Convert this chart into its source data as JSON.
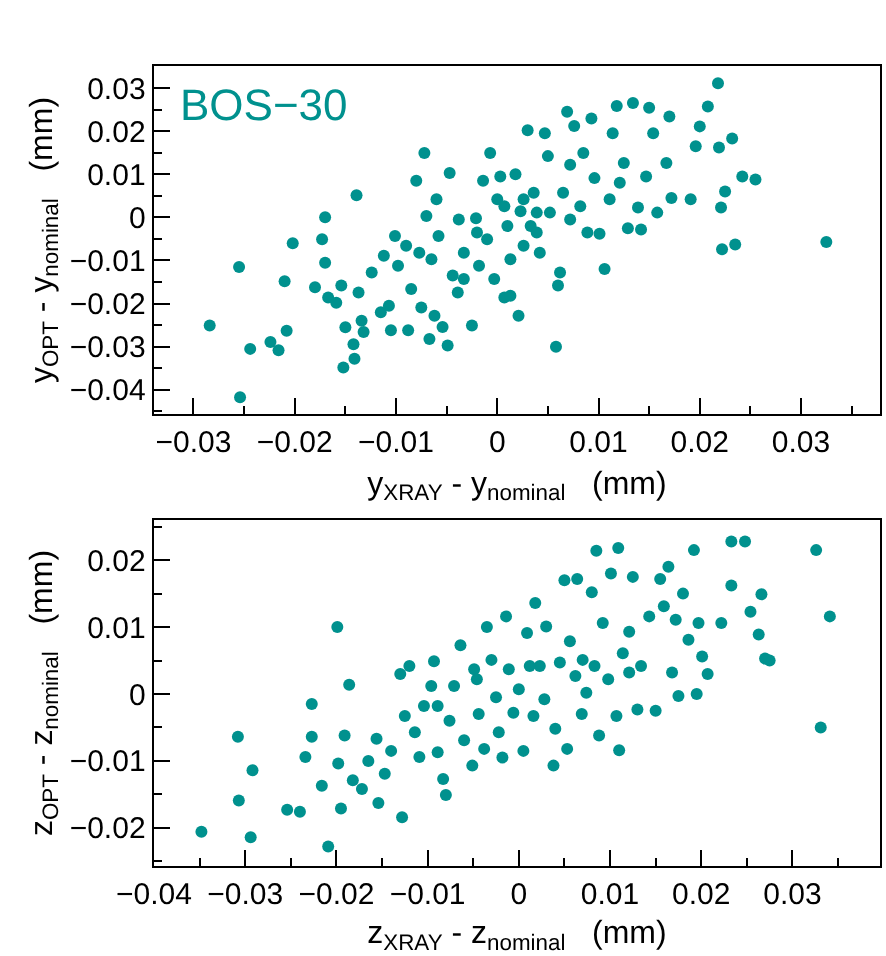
{
  "chart_data": [
    {
      "type": "scatter",
      "xlabel": "y$_{XRAY}$ - y$_{nominal}$   (mm)",
      "ylabel": "y$_{OPT}$ - y$_{nominal}$   (mm)",
      "annotations": [
        "BOS−30"
      ],
      "marker": "circle",
      "xlim": [
        -0.0339,
        0.0378
      ],
      "ylim": [
        -0.0456,
        0.0351
      ],
      "xticks": [
        -0.03,
        -0.02,
        -0.01,
        0,
        0.01,
        0.02,
        0.03
      ],
      "yticks": [
        -0.04,
        -0.03,
        -0.02,
        -0.01,
        0,
        0.01,
        0.02,
        0.03
      ],
      "series": [
        {
          "color": "#00918e",
          "x": [
            -0.0284,
            -0.0255,
            -0.0254,
            -0.0244,
            -0.0224,
            -0.0216,
            -0.0208,
            -0.021,
            -0.0202,
            -0.018,
            -0.0173,
            -0.017,
            -0.017,
            -0.0167,
            -0.0159,
            -0.0154,
            -0.0152,
            -0.015,
            -0.0142,
            -0.0141,
            -0.0139,
            -0.0137,
            -0.0134,
            -0.0132,
            -0.0124,
            -0.0115,
            -0.0112,
            -0.0107,
            -0.0105,
            -0.0101,
            -0.0098,
            -0.009,
            -0.0088,
            -0.0085,
            -0.008,
            -0.0077,
            -0.0075,
            -0.0072,
            -0.007,
            -0.0067,
            -0.0062,
            -0.006,
            -0.0058,
            -0.0054,
            -0.0049,
            -0.0047,
            -0.0044,
            -0.0039,
            -0.0038,
            -0.0033,
            -0.0025,
            -0.0021,
            -0.0018,
            -0.0014,
            -0.001,
            -0.0007,
            -0.0003,
            0.0,
            0.0003,
            0.0007,
            0.001,
            0.0013,
            0.0018,
            0.0021,
            0.0023,
            0.0026,
            0.003,
            0.0033,
            0.0036,
            0.0039,
            0.0042,
            0.0047,
            0.005,
            0.0052,
            0.0058,
            0.006,
            0.0062,
            0.0065,
            0.0069,
            0.0072,
            0.0076,
            0.0082,
            0.0085,
            0.0089,
            0.0093,
            0.0096,
            0.0101,
            0.0106,
            0.0111,
            0.0114,
            0.0118,
            0.0121,
            0.0125,
            0.0129,
            0.0134,
            0.0139,
            0.0142,
            0.0147,
            0.015,
            0.0154,
            0.0158,
            0.0167,
            0.017,
            0.0172,
            0.0191,
            0.0196,
            0.02,
            0.0208,
            0.0218,
            0.0219,
            0.0221,
            0.0222,
            0.0225,
            0.0232,
            0.0235,
            0.0242,
            0.0255,
            0.0325,
            0.0007,
            0.0026,
            0.0039,
            -0.0033,
            -0.0065,
            -0.002,
            0.0072,
            0.0013
          ],
          "values": [
            -0.0251,
            -0.0115,
            -0.0417,
            -0.0305,
            -0.0289,
            -0.0308,
            -0.0263,
            -0.0148,
            -0.006,
            -0.0162,
            -0.0051,
            0.0,
            -0.0105,
            -0.0186,
            -0.0198,
            -0.0158,
            -0.0348,
            -0.0255,
            -0.0294,
            -0.0328,
            0.0051,
            -0.0174,
            -0.024,
            -0.0266,
            -0.0128,
            -0.022,
            -0.0089,
            -0.0205,
            -0.0262,
            -0.0043,
            -0.0112,
            -0.0066,
            -0.0262,
            -0.0166,
            0.0085,
            -0.0082,
            -0.0209,
            0.0149,
            0.0003,
            -0.0282,
            -0.0228,
            0.0042,
            -0.0043,
            -0.0254,
            -0.0297,
            0.0103,
            -0.0135,
            -0.0174,
            -0.0005,
            -0.0082,
            -0.0251,
            -0.0002,
            -0.0112,
            0.0085,
            -0.0051,
            0.0149,
            -0.0143,
            0.0042,
            0.0095,
            -0.0186,
            -0.002,
            -0.0097,
            0.01,
            -0.0228,
            0.0014,
            -0.0066,
            0.0202,
            -0.002,
            0.0057,
            -0.0035,
            -0.0082,
            0.0195,
            0.0142,
            0.0011,
            -0.03,
            -0.0158,
            -0.0128,
            0.0057,
            0.0245,
            0.0122,
            0.0212,
            0.0026,
            0.0149,
            -0.0035,
            0.0229,
            0.0091,
            -0.0038,
            -0.012,
            0.0042,
            0.0195,
            0.0258,
            0.008,
            0.0126,
            -0.0025,
            0.0265,
            0.0023,
            -0.0028,
            0.0095,
            0.0254,
            0.0195,
            0.0011,
            0.0126,
            0.0234,
            0.0045,
            0.0042,
            0.0165,
            0.0211,
            0.0257,
            0.0311,
            0.0162,
            0.0023,
            -0.0074,
            0.006,
            0.0183,
            -0.0063,
            0.0095,
            0.0088,
            -0.0057,
            0.0026,
            0.0042,
            0.0011,
            -0.0143,
            -0.0097,
            -0.0035,
            -0.0005,
            -0.0182
          ]
        }
      ]
    },
    {
      "type": "scatter",
      "xlabel": "z$_{XRAY}$ - z$_{nominal}$   (mm)",
      "ylabel": "z$_{OPT}$ - z$_{nominal}$   (mm)",
      "marker": "circle",
      "xlim": [
        -0.04,
        0.0396
      ],
      "ylim": [
        -0.0257,
        0.026
      ],
      "xticks": [
        -0.04,
        -0.03,
        -0.02,
        -0.01,
        0,
        0.01,
        0.02,
        0.03
      ],
      "yticks": [
        -0.02,
        -0.01,
        0,
        0.01,
        0.02
      ],
      "series": [
        {
          "color": "#00918e",
          "x": [
            -0.0348,
            -0.0308,
            -0.0307,
            -0.0294,
            -0.0292,
            -0.0254,
            -0.024,
            -0.0234,
            -0.0227,
            -0.0227,
            -0.0216,
            -0.0209,
            -0.0199,
            -0.0198,
            -0.0195,
            -0.0191,
            -0.0186,
            -0.0182,
            -0.0172,
            -0.0165,
            -0.0154,
            -0.0156,
            -0.0147,
            -0.014,
            -0.013,
            -0.0128,
            -0.0125,
            -0.012,
            -0.0114,
            -0.0109,
            -0.0104,
            -0.0096,
            -0.0093,
            -0.0089,
            -0.0083,
            -0.008,
            -0.0076,
            -0.0071,
            -0.0064,
            -0.006,
            -0.0051,
            -0.0049,
            -0.0044,
            -0.0038,
            -0.0035,
            -0.003,
            -0.0025,
            -0.0022,
            -0.0018,
            -0.0014,
            -0.0011,
            -0.0006,
            0.0,
            0.0005,
            0.0009,
            0.0016,
            0.0018,
            0.0023,
            0.0028,
            0.003,
            0.0038,
            0.004,
            0.0045,
            0.005,
            0.0053,
            0.0056,
            0.0062,
            0.0064,
            0.0069,
            0.0074,
            0.008,
            0.0083,
            0.0085,
            0.0088,
            0.0092,
            0.0098,
            0.0101,
            0.0107,
            0.0109,
            0.011,
            0.0114,
            0.0121,
            0.0125,
            0.013,
            0.0134,
            0.0143,
            0.015,
            0.0155,
            0.0159,
            0.0164,
            0.0168,
            0.0172,
            0.0175,
            0.018,
            0.0186,
            0.0192,
            0.0195,
            0.0197,
            0.0201,
            0.0207,
            0.0222,
            0.0233,
            0.0233,
            0.0248,
            0.0254,
            0.0263,
            0.0266,
            0.027,
            0.0275,
            0.0326,
            0.0331,
            0.0341,
            0.0012,
            -0.0046,
            0.007,
            0.0121,
            -0.0089
          ],
          "values": [
            -0.0206,
            -0.0064,
            -0.0159,
            -0.0214,
            -0.0114,
            -0.0173,
            -0.0176,
            -0.0094,
            -0.0015,
            -0.0064,
            -0.0137,
            -0.0228,
            0.01,
            -0.0104,
            -0.0171,
            -0.0062,
            0.0014,
            -0.0129,
            -0.0142,
            -0.01,
            -0.0163,
            -0.0067,
            -0.0119,
            -0.0085,
            0.003,
            -0.0184,
            -0.0033,
            0.0042,
            -0.0057,
            -0.0094,
            -0.0018,
            0.0012,
            0.0049,
            -0.0087,
            -0.0127,
            -0.0151,
            -0.004,
            0.0012,
            0.0073,
            -0.0069,
            -0.0107,
            0.0037,
            -0.003,
            -0.0082,
            0.01,
            0.0051,
            -0.0005,
            -0.0057,
            -0.0095,
            0.0116,
            0.0037,
            -0.0028,
            0.0007,
            -0.0085,
            0.0091,
            -0.0033,
            0.0136,
            0.0042,
            -0.0008,
            0.0101,
            -0.0107,
            -0.0052,
            0.0047,
            0.017,
            -0.0082,
            0.0079,
            0.0027,
            0.0172,
            -0.003,
            0.0002,
            0.0152,
            0.0042,
            0.0214,
            -0.0062,
            0.0106,
            0.0022,
            0.018,
            -0.0033,
            0.0218,
            -0.0084,
            0.0061,
            0.0093,
            0.0175,
            -0.0023,
            0.0042,
            0.0116,
            -0.0025,
            0.0172,
            0.0131,
            0.019,
            0.0032,
            0.0111,
            -0.0003,
            0.015,
            0.0081,
            0.0215,
            0.0,
            0.0106,
            0.0056,
            0.003,
            0.0106,
            0.0228,
            0.0162,
            0.0228,
            0.0123,
            0.0089,
            0.0149,
            0.0053,
            0.005,
            0.0215,
            -0.005,
            0.0116,
            0.0042,
            0.0022,
            0.0051,
            0.0032,
            -0.0018
          ]
        }
      ]
    }
  ]
}
